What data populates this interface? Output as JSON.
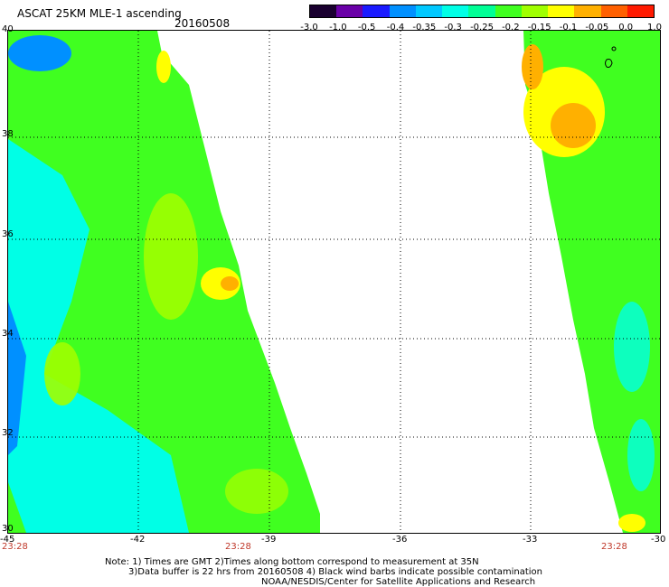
{
  "header": {
    "title": "ASCAT 25KM MLE-1 ascending",
    "date": "20160508"
  },
  "colorbar": {
    "labels": [
      "-3.0",
      "-1.0",
      "-0.5",
      "-0.4",
      "-0.35",
      "-0.3",
      "-0.25",
      "-0.2",
      "-0.15",
      "-0.1",
      "-0.05",
      "0.0",
      "1.0"
    ],
    "colors": [
      "#1a0030",
      "#6a00a8",
      "#1a1aff",
      "#0090ff",
      "#00c8ff",
      "#00ffe6",
      "#00ff96",
      "#40ff20",
      "#a0ff00",
      "#ffff00",
      "#ffb000",
      "#ff6000",
      "#ff1a00"
    ]
  },
  "map": {
    "lat_labels": [
      "40",
      "38",
      "36",
      "34",
      "32",
      "30"
    ],
    "lon_labels": [
      "-45",
      "-42",
      "-39",
      "-36",
      "-33",
      "-30"
    ],
    "times": [
      "23:28",
      "23:28",
      "23:28"
    ],
    "swath_colors": {
      "cyan": "#00ffe6",
      "green": "#40ff20",
      "yellow_green": "#a0ff00",
      "yellow": "#ffff00",
      "orange": "#ffb000",
      "blue": "#0090ff"
    }
  },
  "footer": {
    "line1": "Note: 1) Times are GMT 2)Times along bottom correspond to measurement at 35N",
    "line2": "3)Data buffer is 22 hrs from 20160508 4) Black wind barbs indicate possible contamination",
    "line3": "NOAA/NESDIS/Center for Satellite Applications and Research"
  }
}
